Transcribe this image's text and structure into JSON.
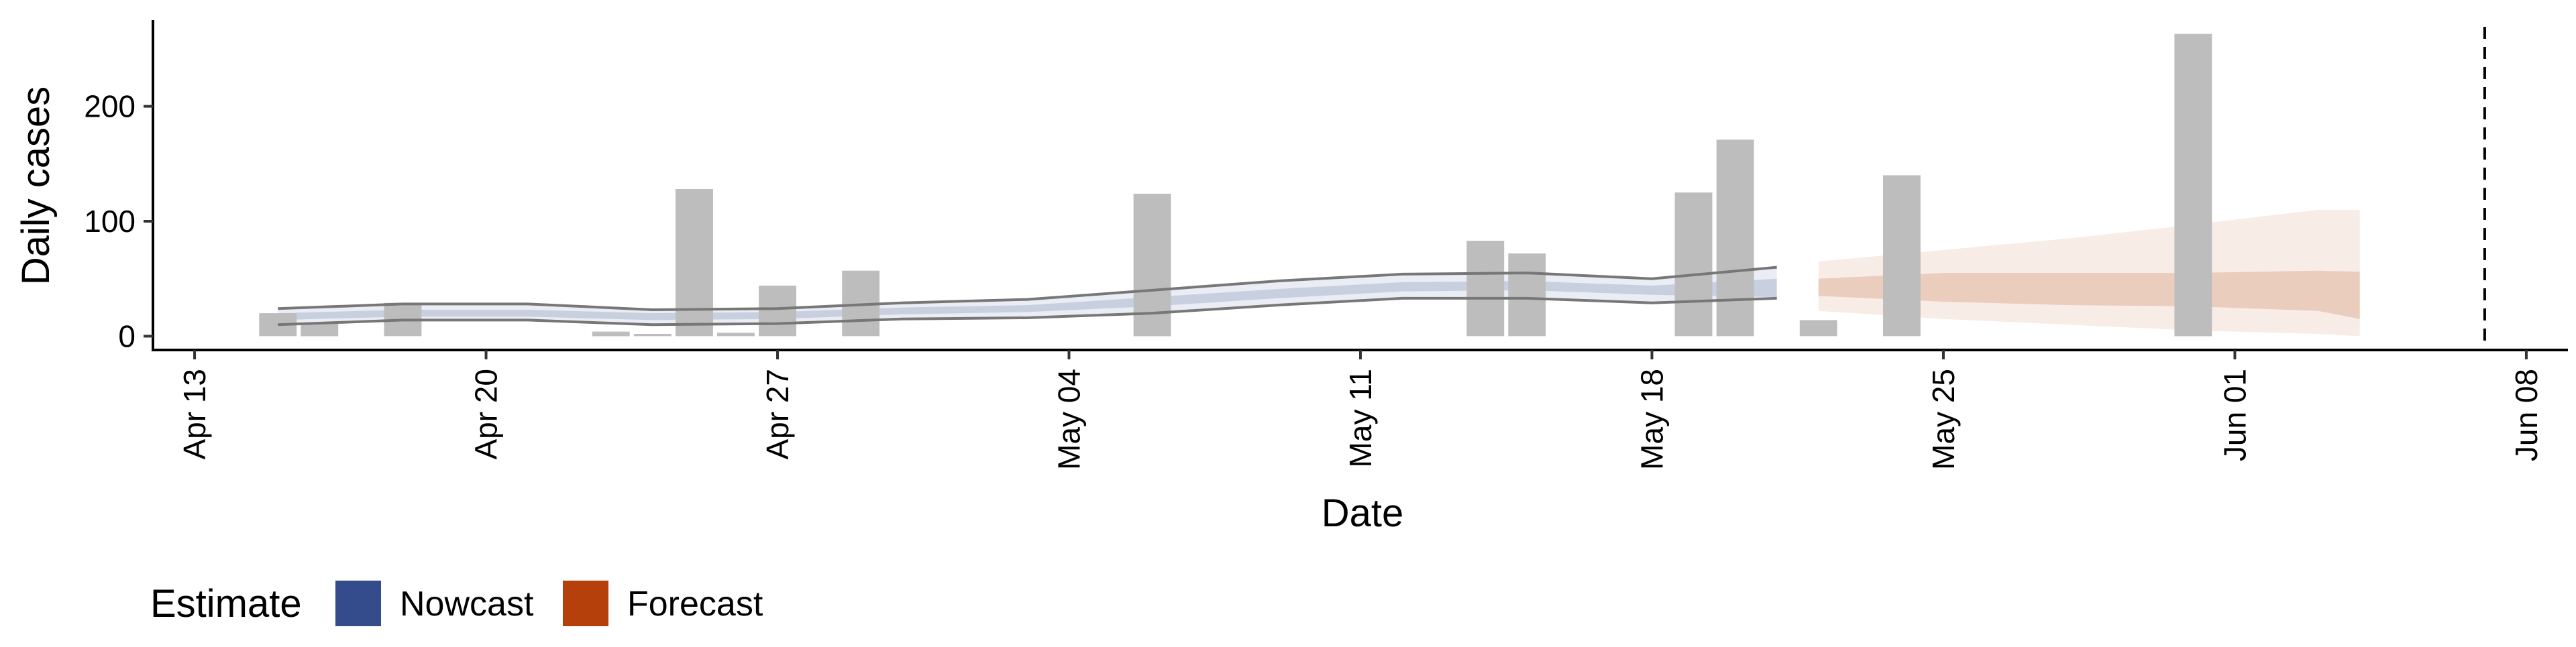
{
  "chart_data": {
    "type": "bar",
    "xlabel": "Date",
    "ylabel": "Daily cases",
    "xlim": [
      "2020-04-12",
      "2020-06-09"
    ],
    "ylim": [
      -12,
      275
    ],
    "x_ticks": [
      {
        "date": "2020-04-13",
        "label": "Apr 13"
      },
      {
        "date": "2020-04-20",
        "label": "Apr 20"
      },
      {
        "date": "2020-04-27",
        "label": "Apr 27"
      },
      {
        "date": "2020-05-04",
        "label": "May 04"
      },
      {
        "date": "2020-05-11",
        "label": "May 11"
      },
      {
        "date": "2020-05-18",
        "label": "May 18"
      },
      {
        "date": "2020-05-25",
        "label": "May 25"
      },
      {
        "date": "2020-06-01",
        "label": "Jun 01"
      },
      {
        "date": "2020-06-08",
        "label": "Jun 08"
      }
    ],
    "y_ticks": [
      {
        "value": 0,
        "label": "0"
      },
      {
        "value": 100,
        "label": "100"
      },
      {
        "value": 200,
        "label": "200"
      }
    ],
    "reported_cases": {
      "dates": [
        "2020-04-15",
        "2020-04-16",
        "2020-04-18",
        "2020-04-23",
        "2020-04-24",
        "2020-04-25",
        "2020-04-26",
        "2020-04-27",
        "2020-04-29",
        "2020-05-06",
        "2020-05-14",
        "2020-05-15",
        "2020-05-19",
        "2020-05-20",
        "2020-05-22",
        "2020-05-24",
        "2020-05-31"
      ],
      "values": [
        20,
        12,
        29,
        4,
        2,
        128,
        3,
        44,
        57,
        124,
        83,
        72,
        125,
        171,
        14,
        140,
        263
      ]
    },
    "nowcast": {
      "dates": [
        "2020-04-15",
        "2020-04-18",
        "2020-04-21",
        "2020-04-24",
        "2020-04-27",
        "2020-04-30",
        "2020-05-03",
        "2020-05-06",
        "2020-05-09",
        "2020-05-12",
        "2020-05-15",
        "2020-05-18",
        "2020-05-21"
      ],
      "median": [
        17,
        20,
        20,
        17,
        18,
        22,
        24,
        30,
        37,
        43,
        44,
        40,
        42
      ],
      "inner_lower": [
        14,
        17,
        17,
        14,
        15,
        19,
        21,
        26,
        33,
        39,
        40,
        36,
        34
      ],
      "inner_upper": [
        20,
        23,
        23,
        20,
        21,
        25,
        27,
        34,
        41,
        47,
        48,
        44,
        50
      ],
      "outer_lower": [
        10,
        14,
        14,
        10,
        11,
        15,
        16,
        20,
        27,
        33,
        33,
        29,
        33
      ],
      "outer_upper": [
        24,
        28,
        28,
        23,
        24,
        29,
        32,
        40,
        48,
        54,
        55,
        50,
        60
      ]
    },
    "forecast": {
      "dates": [
        "2020-05-22",
        "2020-05-25",
        "2020-05-28",
        "2020-05-31",
        "2020-06-03",
        "2020-06-04"
      ],
      "inner_lower": [
        35,
        30,
        27,
        26,
        22,
        15
      ],
      "inner_upper": [
        50,
        55,
        55,
        55,
        57,
        56
      ],
      "outer_lower": [
        22,
        15,
        10,
        5,
        2,
        0
      ],
      "outer_upper": [
        65,
        75,
        85,
        97,
        110,
        110
      ]
    },
    "cutoff_date": "2020-06-07",
    "legend": {
      "title": "Estimate",
      "position": "bottom-left",
      "items": [
        {
          "label": "Nowcast",
          "color": "#344b8c"
        },
        {
          "label": "Forecast",
          "color": "#b5400c"
        }
      ]
    },
    "colors": {
      "bars": "#bdbdbd",
      "nowcast": "#344b8c",
      "forecast": "#b5400c",
      "nowcast_line": "#777777",
      "cutoff_line": "#000000"
    }
  }
}
